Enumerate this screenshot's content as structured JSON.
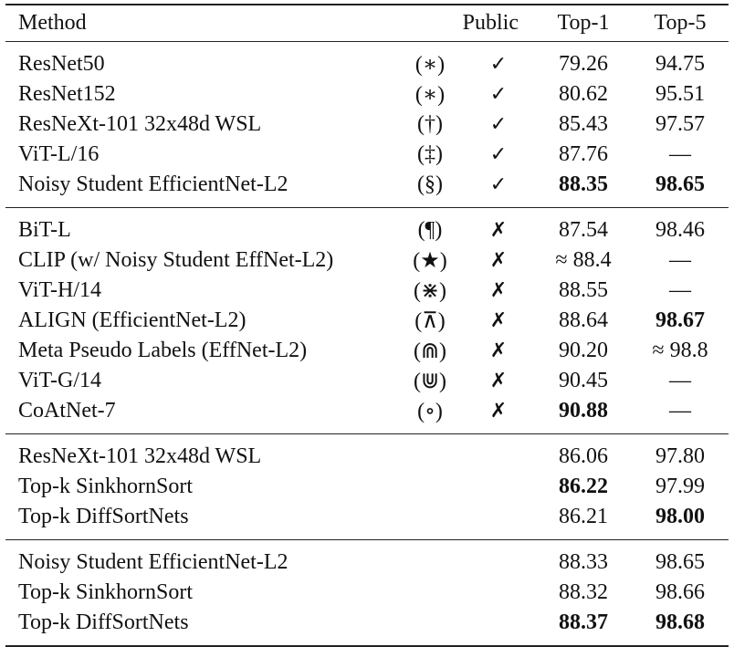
{
  "table": {
    "header": [
      "Method",
      "Public",
      "Top-1",
      "Top-5"
    ],
    "groups": [
      {
        "rows": [
          {
            "method": "ResNet50",
            "symbol": "(∗)",
            "public": "✓",
            "top1": "79.26",
            "top5": "94.75"
          },
          {
            "method": "ResNet152",
            "symbol": "(∗)",
            "public": "✓",
            "top1": "80.62",
            "top5": "95.51"
          },
          {
            "method": "ResNeXt-101 32x48d WSL",
            "symbol": "(†)",
            "public": "✓",
            "top1": "85.43",
            "top5": "97.57"
          },
          {
            "method": "ViT-L/16",
            "symbol": "(‡)",
            "public": "✓",
            "top1": "87.76",
            "top5": "—"
          },
          {
            "method": "Noisy Student EfficientNet-L2",
            "symbol": "(§)",
            "public": "✓",
            "top1": "88.35",
            "top5": "98.65",
            "bold": [
              "top1",
              "top5"
            ]
          }
        ]
      },
      {
        "rows": [
          {
            "method": "BiT-L",
            "symbol": "(¶)",
            "public": "✗",
            "top1": "87.54",
            "top5": "98.46"
          },
          {
            "method": "CLIP (w/ Noisy Student EffNet-L2)",
            "symbol": "(★)",
            "public": "✗",
            "top1": "≈ 88.4",
            "top5": "—"
          },
          {
            "method": "ViT-H/14",
            "symbol": "(⋇)",
            "public": "✗",
            "top1": "88.55",
            "top5": "—"
          },
          {
            "method": "ALIGN (EfficientNet-L2)",
            "symbol": "(⊼)",
            "public": "✗",
            "top1": "88.64",
            "top5": "98.67",
            "bold": [
              "top5"
            ]
          },
          {
            "method": "Meta Pseudo Labels (EffNet-L2)",
            "symbol": "(⋒)",
            "public": "✗",
            "top1": "90.20",
            "top5": "≈ 98.8"
          },
          {
            "method": "ViT-G/14",
            "symbol": "(⋓)",
            "public": "✗",
            "top1": "90.45",
            "top5": "—"
          },
          {
            "method": "CoAtNet-7",
            "symbol": "(∘)",
            "public": "✗",
            "top1": "90.88",
            "top5": "—",
            "bold": [
              "top1"
            ]
          }
        ]
      },
      {
        "rows": [
          {
            "method": "ResNeXt-101 32x48d WSL",
            "top1": "86.06",
            "top5": "97.80"
          },
          {
            "method": "Top-k SinkhornSort",
            "top1": "86.22",
            "top5": "97.99",
            "bold": [
              "top1"
            ]
          },
          {
            "method": "Top-k DiffSortNets",
            "top1": "86.21",
            "top5": "98.00",
            "bold": [
              "top5"
            ]
          }
        ]
      },
      {
        "rows": [
          {
            "method": "Noisy Student EfficientNet-L2",
            "top1": "88.33",
            "top5": "98.65"
          },
          {
            "method": "Top-k SinkhornSort",
            "top1": "88.32",
            "top5": "98.66"
          },
          {
            "method": "Top-k DiffSortNets",
            "top1": "88.37",
            "top5": "98.68",
            "bold": [
              "top1",
              "top5"
            ]
          }
        ]
      }
    ]
  }
}
